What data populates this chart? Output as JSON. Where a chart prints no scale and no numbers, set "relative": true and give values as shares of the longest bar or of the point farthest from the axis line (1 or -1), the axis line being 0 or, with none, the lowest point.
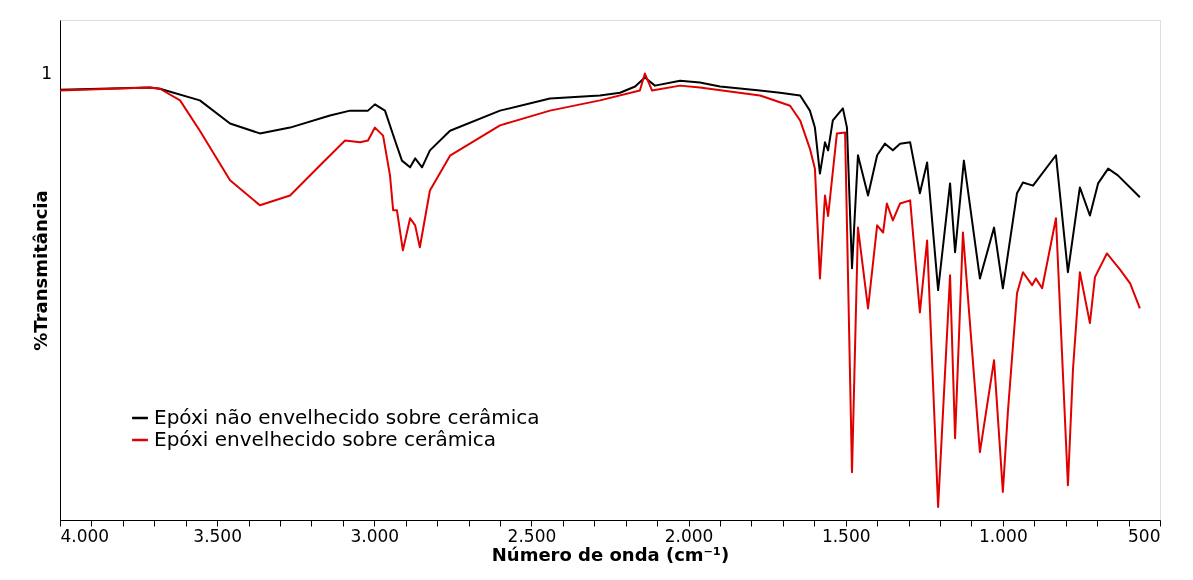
{
  "chart_data": {
    "type": "line",
    "relative": true,
    "xlabel": "Número de onda (cm⁻¹)",
    "ylabel": "%Transmitância",
    "xlim": [
      4000,
      500
    ],
    "xticks": [
      {
        "value": 4000,
        "label": "4.000"
      },
      {
        "value": 3900,
        "label": null
      },
      {
        "value": 3800,
        "label": null
      },
      {
        "value": 3700,
        "label": null
      },
      {
        "value": 3600,
        "label": null
      },
      {
        "value": 3500,
        "label": "3.500"
      },
      {
        "value": 3400,
        "label": null
      },
      {
        "value": 3300,
        "label": null
      },
      {
        "value": 3200,
        "label": null
      },
      {
        "value": 3100,
        "label": null
      },
      {
        "value": 3000,
        "label": "3.000"
      },
      {
        "value": 2900,
        "label": null
      },
      {
        "value": 2800,
        "label": null
      },
      {
        "value": 2700,
        "label": null
      },
      {
        "value": 2600,
        "label": null
      },
      {
        "value": 2500,
        "label": "2.500"
      },
      {
        "value": 2400,
        "label": null
      },
      {
        "value": 2300,
        "label": null
      },
      {
        "value": 2200,
        "label": null
      },
      {
        "value": 2100,
        "label": null
      },
      {
        "value": 2000,
        "label": "2.000"
      },
      {
        "value": 1900,
        "label": null
      },
      {
        "value": 1800,
        "label": null
      },
      {
        "value": 1700,
        "label": null
      },
      {
        "value": 1600,
        "label": null
      },
      {
        "value": 1500,
        "label": "1.500"
      },
      {
        "value": 1400,
        "label": null
      },
      {
        "value": 1300,
        "label": null
      },
      {
        "value": 1200,
        "label": null
      },
      {
        "value": 1100,
        "label": null
      },
      {
        "value": 1000,
        "label": "1.000"
      },
      {
        "value": 900,
        "label": null
      },
      {
        "value": 800,
        "label": null
      },
      {
        "value": 700,
        "label": null
      },
      {
        "value": 600,
        "label": null
      },
      {
        "value": 500,
        "label": "500"
      }
    ],
    "annotations": [
      "1"
    ],
    "legend": "bottom left",
    "grid": false,
    "marker": "none",
    "line_style": "solid",
    "series": [
      {
        "name": "Epóxi não envelhecido sobre cerâmica",
        "color": "#000000",
        "x": [
          4000,
          3873,
          3714,
          3682,
          3555,
          3459,
          3364,
          3268,
          3141,
          3077,
          3020,
          2998,
          2966,
          2934,
          2912,
          2886,
          2870,
          2848,
          2823,
          2759,
          2600,
          2441,
          2282,
          2218,
          2170,
          2139,
          2107,
          2027,
          1964,
          1900,
          1773,
          1709,
          1645,
          1614,
          1598,
          1582,
          1566,
          1556,
          1541,
          1509,
          1496,
          1480,
          1461,
          1429,
          1400,
          1375,
          1350,
          1327,
          1295,
          1264,
          1241,
          1206,
          1168,
          1152,
          1124,
          1073,
          1028,
          1000,
          955,
          936,
          904,
          831,
          793,
          755,
          723,
          697,
          665,
          634,
          564
        ],
        "values": [
          0.964,
          0.966,
          0.969,
          0.966,
          0.94,
          0.888,
          0.866,
          0.879,
          0.906,
          0.917,
          0.917,
          0.931,
          0.917,
          0.85,
          0.805,
          0.79,
          0.81,
          0.79,
          0.828,
          0.872,
          0.917,
          0.944,
          0.951,
          0.957,
          0.971,
          0.991,
          0.973,
          0.984,
          0.98,
          0.971,
          0.962,
          0.957,
          0.951,
          0.917,
          0.879,
          0.776,
          0.846,
          0.828,
          0.895,
          0.922,
          0.879,
          0.564,
          0.817,
          0.727,
          0.817,
          0.843,
          0.828,
          0.843,
          0.846,
          0.732,
          0.801,
          0.515,
          0.754,
          0.6,
          0.805,
          0.541,
          0.655,
          0.519,
          0.732,
          0.756,
          0.749,
          0.817,
          0.555,
          0.745,
          0.682,
          0.754,
          0.787,
          0.772,
          0.723
        ]
      },
      {
        "name": "Epóxi envelhecido sobre cerâmica",
        "color": "#e00000",
        "x": [
          4000,
          3714,
          3682,
          3618,
          3555,
          3459,
          3364,
          3268,
          3173,
          3093,
          3045,
          3020,
          2998,
          2972,
          2950,
          2940,
          2928,
          2909,
          2886,
          2870,
          2855,
          2823,
          2759,
          2600,
          2441,
          2282,
          2155,
          2139,
          2116,
          2027,
          1964,
          1773,
          1677,
          1645,
          1614,
          1598,
          1582,
          1566,
          1556,
          1528,
          1502,
          1480,
          1461,
          1429,
          1400,
          1381,
          1369,
          1350,
          1327,
          1295,
          1264,
          1241,
          1206,
          1168,
          1152,
          1127,
          1073,
          1028,
          1000,
          984,
          955,
          936,
          907,
          895,
          875,
          831,
          793,
          777,
          755,
          723,
          707,
          669,
          627,
          595,
          564
        ],
        "values": [
          0.962,
          0.969,
          0.966,
          0.94,
          0.872,
          0.761,
          0.705,
          0.727,
          0.794,
          0.85,
          0.846,
          0.85,
          0.879,
          0.861,
          0.772,
          0.694,
          0.694,
          0.604,
          0.676,
          0.66,
          0.611,
          0.738,
          0.816,
          0.884,
          0.917,
          0.94,
          0.962,
          1.0,
          0.962,
          0.973,
          0.969,
          0.951,
          0.928,
          0.895,
          0.832,
          0.787,
          0.541,
          0.727,
          0.681,
          0.866,
          0.868,
          0.107,
          0.655,
          0.474,
          0.66,
          0.644,
          0.709,
          0.671,
          0.709,
          0.716,
          0.465,
          0.626,
          0.029,
          0.548,
          0.183,
          0.644,
          0.152,
          0.358,
          0.063,
          0.242,
          0.508,
          0.555,
          0.526,
          0.541,
          0.519,
          0.676,
          0.078,
          0.336,
          0.555,
          0.441,
          0.544,
          0.597,
          0.561,
          0.53,
          0.474
        ]
      }
    ]
  }
}
